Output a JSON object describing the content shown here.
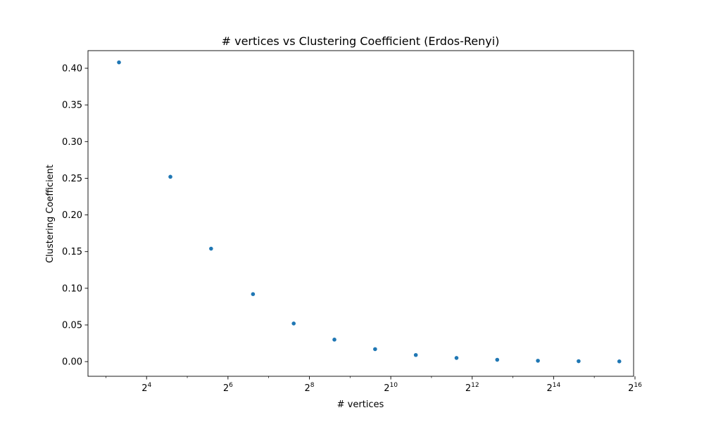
{
  "chart_data": {
    "type": "scatter",
    "title": "# vertices vs Clustering Coefficient (Erdos-Renyi)",
    "xlabel": "# vertices",
    "ylabel": "Clustering Coefficient",
    "x_scale": "log2",
    "xlim": [
      5.9,
      64000
    ],
    "ylim": [
      -0.02,
      0.424
    ],
    "x_ticks": [
      {
        "value": 16,
        "base": "2",
        "exp": "4"
      },
      {
        "value": 64,
        "base": "2",
        "exp": "6"
      },
      {
        "value": 256,
        "base": "2",
        "exp": "8"
      },
      {
        "value": 1024,
        "base": "2",
        "exp": "10"
      },
      {
        "value": 4096,
        "base": "2",
        "exp": "12"
      },
      {
        "value": 16384,
        "base": "2",
        "exp": "14"
      },
      {
        "value": 65536,
        "base": "2",
        "exp": "16"
      }
    ],
    "y_ticks": [
      {
        "value": 0.0,
        "label": "0.00"
      },
      {
        "value": 0.05,
        "label": "0.05"
      },
      {
        "value": 0.1,
        "label": "0.10"
      },
      {
        "value": 0.15,
        "label": "0.15"
      },
      {
        "value": 0.2,
        "label": "0.20"
      },
      {
        "value": 0.25,
        "label": "0.25"
      },
      {
        "value": 0.3,
        "label": "0.30"
      },
      {
        "value": 0.35,
        "label": "0.35"
      },
      {
        "value": 0.4,
        "label": "0.40"
      }
    ],
    "grid": false,
    "legend": "none",
    "series": [
      {
        "color": "#1f77b4",
        "points": [
          {
            "x": 10,
            "y": 0.408
          },
          {
            "x": 24,
            "y": 0.252
          },
          {
            "x": 48,
            "y": 0.154
          },
          {
            "x": 98,
            "y": 0.092
          },
          {
            "x": 196,
            "y": 0.052
          },
          {
            "x": 392,
            "y": 0.03
          },
          {
            "x": 784,
            "y": 0.017
          },
          {
            "x": 1568,
            "y": 0.009
          },
          {
            "x": 3136,
            "y": 0.005
          },
          {
            "x": 6272,
            "y": 0.0025
          },
          {
            "x": 12544,
            "y": 0.0012
          },
          {
            "x": 25088,
            "y": 0.0006
          },
          {
            "x": 50176,
            "y": 0.0003
          }
        ]
      }
    ]
  }
}
